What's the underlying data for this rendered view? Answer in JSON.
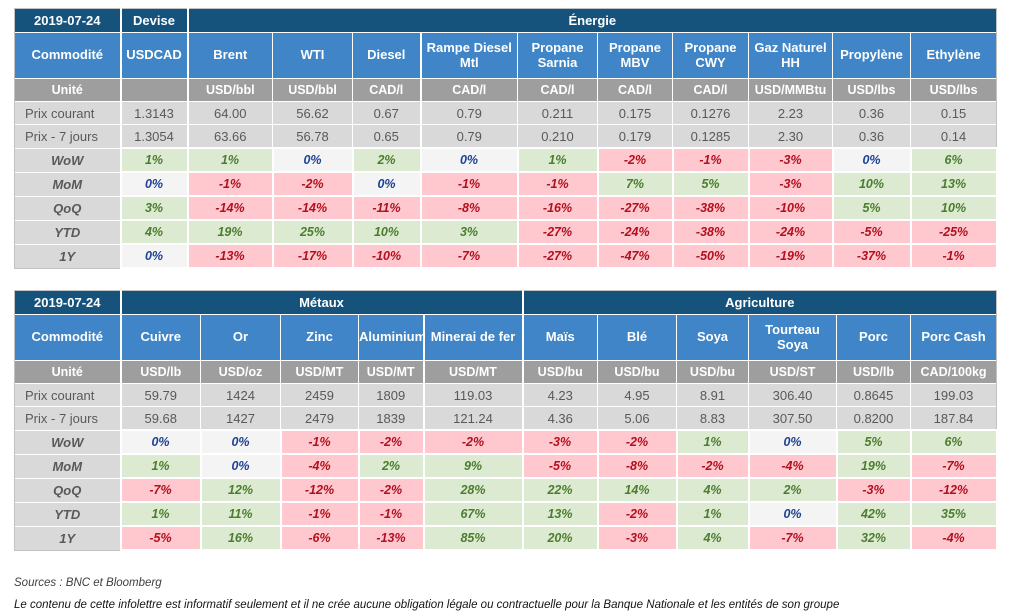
{
  "page": {
    "sources_note": "Sources : BNC et Bloomberg",
    "disclaimer": "Le contenu de cette infolettre est informatif seulement et il ne crée aucune obligation légale ou contractuelle pour la Banque Nationale et les entités de son groupe"
  },
  "labels": {
    "commodity": "Commodité",
    "unit": "Unité",
    "current_price": "Prix courant",
    "prev_price": "Prix - 7 jours",
    "periods": [
      "WoW",
      "MoM",
      "QoQ",
      "YTD",
      "1Y"
    ]
  },
  "colors": {
    "header_dark_blue": "#15537d",
    "header_blue": "#3f85c7",
    "unit_row_gray": "#9e9e9e",
    "price_row_gray": "#d9d9d9",
    "positive_bg": "#dcead2",
    "positive_text": "#4c7d2e",
    "negative_bg": "#ffc8ce",
    "negative_text": "#b2101f",
    "zero_bg": "#f4f4f4",
    "zero_text": "#1f4294"
  },
  "tables": [
    {
      "date": "2019-07-24",
      "groups": [
        {
          "label": "Devise",
          "cols": 1
        },
        {
          "label": "Énergie",
          "cols": 10
        }
      ],
      "columns": [
        {
          "name": "USDCAD",
          "unit": "",
          "current": "1.3143",
          "previous": "1.3054",
          "changes": [
            "1%",
            "0%",
            "3%",
            "4%",
            "0%"
          ]
        },
        {
          "name": "Brent",
          "unit": "USD/bbl",
          "current": "64.00",
          "previous": "63.66",
          "changes": [
            "1%",
            "-1%",
            "-14%",
            "19%",
            "-13%"
          ]
        },
        {
          "name": "WTI",
          "unit": "USD/bbl",
          "current": "56.62",
          "previous": "56.78",
          "changes": [
            "0%",
            "-2%",
            "-14%",
            "25%",
            "-17%"
          ]
        },
        {
          "name": "Diesel",
          "unit": "CAD/l",
          "current": "0.67",
          "previous": "0.65",
          "changes": [
            "2%",
            "0%",
            "-11%",
            "10%",
            "-10%"
          ]
        },
        {
          "name": "Rampe Diesel Mtl",
          "unit": "CAD/l",
          "current": "0.79",
          "previous": "0.79",
          "changes": [
            "0%",
            "-1%",
            "-8%",
            "3%",
            "-7%"
          ]
        },
        {
          "name": "Propane Sarnia",
          "unit": "CAD/l",
          "current": "0.211",
          "previous": "0.210",
          "changes": [
            "1%",
            "-1%",
            "-16%",
            "-27%",
            "-27%"
          ]
        },
        {
          "name": "Propane MBV",
          "unit": "CAD/l",
          "current": "0.175",
          "previous": "0.179",
          "changes": [
            "-2%",
            "7%",
            "-27%",
            "-24%",
            "-47%"
          ]
        },
        {
          "name": "Propane CWY",
          "unit": "CAD/l",
          "current": "0.1276",
          "previous": "0.1285",
          "changes": [
            "-1%",
            "5%",
            "-38%",
            "-38%",
            "-50%"
          ]
        },
        {
          "name": "Gaz Naturel HH",
          "unit": "USD/MMBtu",
          "current": "2.23",
          "previous": "2.30",
          "changes": [
            "-3%",
            "-3%",
            "-10%",
            "-24%",
            "-19%"
          ]
        },
        {
          "name": "Propylène",
          "unit": "USD/lbs",
          "current": "0.36",
          "previous": "0.36",
          "changes": [
            "0%",
            "10%",
            "5%",
            "-5%",
            "-37%"
          ]
        },
        {
          "name": "Ethylène",
          "unit": "USD/lbs",
          "current": "0.15",
          "previous": "0.14",
          "changes": [
            "6%",
            "13%",
            "10%",
            "-25%",
            "-1%"
          ]
        }
      ]
    },
    {
      "date": "2019-07-24",
      "groups": [
        {
          "label": "Métaux",
          "cols": 5
        },
        {
          "label": "Agriculture",
          "cols": 6
        }
      ],
      "columns": [
        {
          "name": "Cuivre",
          "unit": "USD/lb",
          "current": "59.79",
          "previous": "59.68",
          "changes": [
            "0%",
            "1%",
            "-7%",
            "1%",
            "-5%"
          ]
        },
        {
          "name": "Or",
          "unit": "USD/oz",
          "current": "1424",
          "previous": "1427",
          "changes": [
            "0%",
            "0%",
            "12%",
            "11%",
            "16%"
          ]
        },
        {
          "name": "Zinc",
          "unit": "USD/MT",
          "current": "2459",
          "previous": "2479",
          "changes": [
            "-1%",
            "-4%",
            "-12%",
            "-1%",
            "-6%"
          ]
        },
        {
          "name": "Aluminium",
          "unit": "USD/MT",
          "current": "1809",
          "previous": "1839",
          "changes": [
            "-2%",
            "2%",
            "-2%",
            "-1%",
            "-13%"
          ]
        },
        {
          "name": "Minerai de fer",
          "unit": "USD/MT",
          "current": "119.03",
          "previous": "121.24",
          "changes": [
            "-2%",
            "9%",
            "28%",
            "67%",
            "85%"
          ]
        },
        {
          "name": "Maïs",
          "unit": "USD/bu",
          "current": "4.23",
          "previous": "4.36",
          "changes": [
            "-3%",
            "-5%",
            "22%",
            "13%",
            "20%"
          ]
        },
        {
          "name": "Blé",
          "unit": "USD/bu",
          "current": "4.95",
          "previous": "5.06",
          "changes": [
            "-2%",
            "-8%",
            "14%",
            "-2%",
            "-3%"
          ]
        },
        {
          "name": "Soya",
          "unit": "USD/bu",
          "current": "8.91",
          "previous": "8.83",
          "changes": [
            "1%",
            "-2%",
            "4%",
            "1%",
            "4%"
          ]
        },
        {
          "name": "Tourteau Soya",
          "unit": "USD/ST",
          "current": "306.40",
          "previous": "307.50",
          "changes": [
            "0%",
            "-4%",
            "2%",
            "0%",
            "-7%"
          ]
        },
        {
          "name": "Porc",
          "unit": "USD/lb",
          "current": "0.8645",
          "previous": "0.8200",
          "changes": [
            "5%",
            "19%",
            "-3%",
            "42%",
            "32%"
          ]
        },
        {
          "name": "Porc Cash",
          "unit": "CAD/100kg",
          "current": "199.03",
          "previous": "187.84",
          "changes": [
            "6%",
            "-7%",
            "-12%",
            "35%",
            "-4%"
          ]
        }
      ]
    }
  ]
}
